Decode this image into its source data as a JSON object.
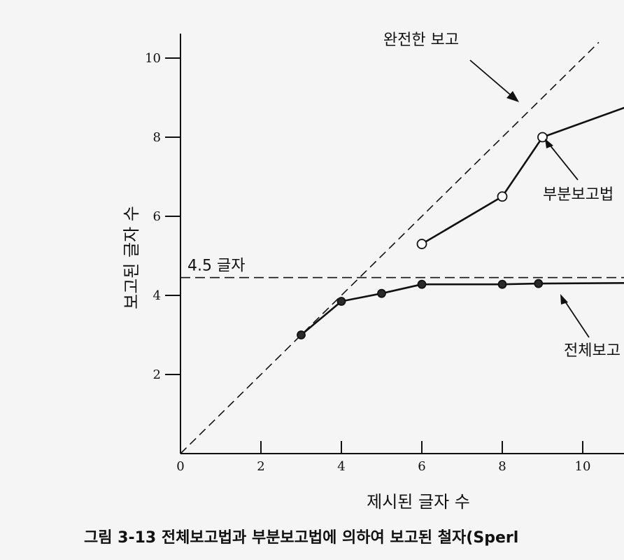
{
  "chart_data": {
    "type": "line",
    "xlabel": "제시된 글자 수",
    "ylabel": "보고된 글자 수",
    "xlim": [
      0,
      12
    ],
    "ylim": [
      0,
      10.5
    ],
    "x_ticks": [
      0,
      2,
      4,
      6,
      8,
      10
    ],
    "y_ticks": [
      2,
      4,
      6,
      8,
      10
    ],
    "x_tick_labels": [
      "0",
      "2",
      "4",
      "6",
      "8",
      "10"
    ],
    "y_tick_labels": [
      "2",
      "4",
      "6",
      "8",
      "10"
    ],
    "grid": false,
    "series": [
      {
        "name": "전체보고",
        "marker": "filled-circle",
        "x": [
          3,
          4,
          5,
          6,
          8,
          8.9,
          12
        ],
        "y": [
          3.0,
          3.85,
          4.05,
          4.28,
          4.28,
          4.3,
          4.32
        ]
      },
      {
        "name": "부분보고법",
        "marker": "open-circle",
        "x": [
          6,
          8,
          9,
          12
        ],
        "y": [
          5.3,
          6.5,
          8.0,
          9.1
        ]
      }
    ],
    "reference_lines": [
      {
        "label": "완전한 보고",
        "kind": "diagonal",
        "x": [
          0,
          10.4
        ],
        "y": [
          0,
          10.4
        ]
      },
      {
        "label": "4.5 글자",
        "kind": "horizontal",
        "y": 4.45
      }
    ],
    "caption": "그림 3-13 전체보고법과 부분보고법에 의하여 보고된 철자(Sperl"
  }
}
